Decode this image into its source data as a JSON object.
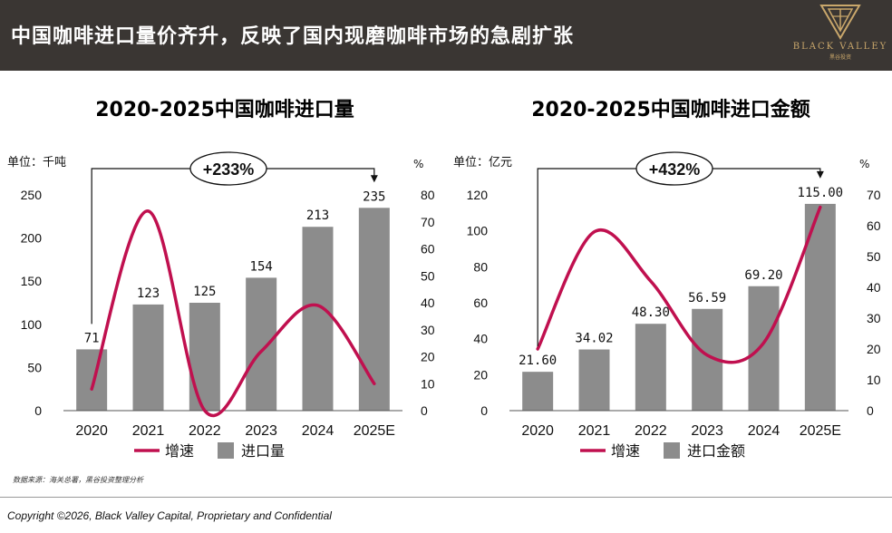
{
  "header": {
    "title": "中国咖啡进口量价齐升，反映了国内现磨咖啡市场的急剧扩张",
    "logo_text": "BLACK VALLEY",
    "logo_sub": "黑谷投资"
  },
  "colors": {
    "header_bg": "#3a3633",
    "bar": "#8c8c8c",
    "line": "#c0104f",
    "logo_gold": "#c9a76b"
  },
  "chart_data": [
    {
      "type": "bar",
      "title": "2020-2025中国咖啡进口量",
      "unit_left": "单位：千吨",
      "unit_right": "%",
      "categories": [
        "2020",
        "2021",
        "2022",
        "2023",
        "2024",
        "2025E"
      ],
      "bar_values": [
        71,
        123,
        125,
        154,
        213,
        235
      ],
      "bar_labels": [
        "71",
        "123",
        "125",
        "154",
        "213",
        "235"
      ],
      "line_values": [
        8,
        74,
        0,
        22,
        39,
        10
      ],
      "ylim_left": [
        0,
        250
      ],
      "yticks_left": [
        0,
        50,
        100,
        150,
        200,
        250
      ],
      "ylim_right": [
        0,
        80
      ],
      "yticks_right": [
        0,
        10,
        20,
        30,
        40,
        50,
        60,
        70,
        80
      ],
      "growth_label": "+233%",
      "legend": {
        "line": "增速",
        "bar": "进口量"
      }
    },
    {
      "type": "bar",
      "title": "2020-2025中国咖啡进口金额",
      "unit_left": "单位：亿元",
      "unit_right": "%",
      "categories": [
        "2020",
        "2021",
        "2022",
        "2023",
        "2024",
        "2025E"
      ],
      "bar_values": [
        21.6,
        34.02,
        48.3,
        56.59,
        69.2,
        115.0
      ],
      "bar_labels": [
        "21.60",
        "34.02",
        "48.30",
        "56.59",
        "69.20",
        "115.00"
      ],
      "line_values": [
        20,
        58,
        42,
        18,
        22,
        66
      ],
      "ylim_left": [
        0,
        120
      ],
      "yticks_left": [
        0,
        20,
        40,
        60,
        80,
        100,
        120
      ],
      "ylim_right": [
        0,
        70
      ],
      "yticks_right": [
        0,
        10,
        20,
        30,
        40,
        50,
        60,
        70
      ],
      "growth_label": "+432%",
      "legend": {
        "line": "增速",
        "bar": "进口金额"
      }
    }
  ],
  "footer": {
    "source": "数据来源：海关总署，黑谷投资整理分析",
    "copyright": "Copyright ©2026, Black Valley Capital, Proprietary and Confidential"
  }
}
